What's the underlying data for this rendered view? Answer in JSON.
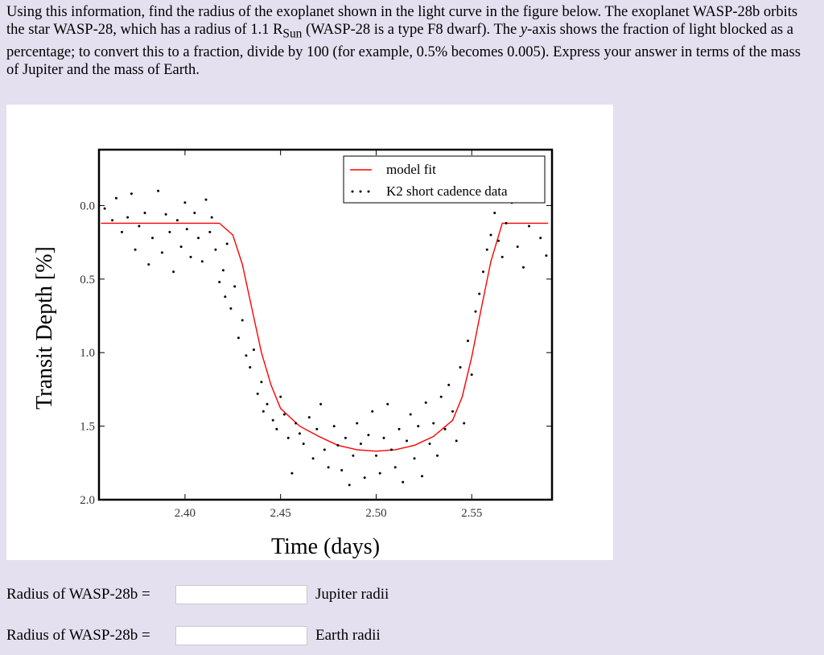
{
  "question": {
    "p1": "Using this information, find the radius of the exoplanet shown in the light curve in the figure below. The exoplanet WASP-28b orbits the star WASP-28, which has a radius of 1.1 R",
    "sub": "Sun",
    "p2": " (WASP-28 is a type F8 dwarf). The ",
    "yvar": "y",
    "p3": "-axis shows the fraction of light blocked as a percentage; to convert this to a fraction, divide by 100 (for example, 0.5% becomes 0.005). Express your answer in terms of the mass of Jupiter and the mass of Earth."
  },
  "answers": [
    {
      "label": "Radius of WASP-28b =",
      "value": "",
      "unit": "Jupiter radii"
    },
    {
      "label": "Radius of WASP-28b =",
      "value": "",
      "unit": "Earth radii"
    }
  ],
  "chart_data": {
    "type": "scatter",
    "xlabel": "Time (days)",
    "ylabel": "Transit Depth [%]",
    "xlim": [
      2.355,
      2.592
    ],
    "ylim": [
      2.0,
      -0.38
    ],
    "x_ticks": [
      "2.40",
      "2.45",
      "2.50",
      "2.55"
    ],
    "x_tick_values": [
      2.4,
      2.45,
      2.5,
      2.55
    ],
    "y_ticks": [
      "0.0",
      "0.5",
      "1.0",
      "1.5",
      "2.0"
    ],
    "y_tick_values": [
      0.0,
      0.5,
      1.0,
      1.5,
      2.0
    ],
    "legend_position": "top-right",
    "grid": false,
    "series": [
      {
        "name": "model fit",
        "kind": "line",
        "color": "#ff0000",
        "x": [
          2.356,
          2.4,
          2.418,
          2.425,
          2.43,
          2.435,
          2.44,
          2.445,
          2.45,
          2.46,
          2.47,
          2.48,
          2.49,
          2.5,
          2.51,
          2.52,
          2.53,
          2.54,
          2.545,
          2.55,
          2.555,
          2.56,
          2.566,
          2.59
        ],
        "y": [
          0.12,
          0.12,
          0.12,
          0.2,
          0.4,
          0.7,
          1.0,
          1.22,
          1.38,
          1.5,
          1.57,
          1.63,
          1.66,
          1.67,
          1.66,
          1.63,
          1.57,
          1.46,
          1.3,
          1.03,
          0.7,
          0.38,
          0.12,
          0.12
        ]
      },
      {
        "name": "K2 short cadence data",
        "kind": "scatter",
        "color": "#000000",
        "x": [
          2.358,
          2.362,
          2.364,
          2.367,
          2.37,
          2.372,
          2.374,
          2.376,
          2.379,
          2.381,
          2.383,
          2.386,
          2.388,
          2.39,
          2.392,
          2.394,
          2.396,
          2.398,
          2.4,
          2.401,
          2.403,
          2.405,
          2.407,
          2.409,
          2.411,
          2.413,
          2.414,
          2.416,
          2.418,
          2.42,
          2.421,
          2.422,
          2.424,
          2.426,
          2.428,
          2.43,
          2.432,
          2.434,
          2.436,
          2.438,
          2.44,
          2.441,
          2.443,
          2.446,
          2.448,
          2.45,
          2.452,
          2.454,
          2.456,
          2.458,
          2.46,
          2.462,
          2.465,
          2.467,
          2.469,
          2.471,
          2.473,
          2.475,
          2.478,
          2.48,
          2.482,
          2.484,
          2.486,
          2.488,
          2.49,
          2.492,
          2.494,
          2.496,
          2.498,
          2.5,
          2.502,
          2.504,
          2.506,
          2.508,
          2.51,
          2.512,
          2.514,
          2.516,
          2.518,
          2.52,
          2.522,
          2.524,
          2.526,
          2.528,
          2.53,
          2.532,
          2.534,
          2.536,
          2.538,
          2.54,
          2.542,
          2.544,
          2.546,
          2.548,
          2.55,
          2.552,
          2.554,
          2.556,
          2.558,
          2.56,
          2.562,
          2.564,
          2.566,
          2.568,
          2.571,
          2.574,
          2.577,
          2.58,
          2.583,
          2.586,
          2.589
        ],
        "y": [
          0.02,
          0.1,
          -0.05,
          0.18,
          0.08,
          -0.08,
          0.3,
          0.14,
          0.05,
          0.4,
          0.22,
          -0.1,
          0.32,
          0.06,
          0.18,
          0.45,
          0.1,
          0.28,
          -0.02,
          0.16,
          0.35,
          0.05,
          0.22,
          0.38,
          -0.04,
          0.18,
          0.08,
          0.3,
          0.52,
          0.44,
          0.62,
          0.26,
          0.7,
          0.55,
          0.9,
          0.78,
          1.02,
          1.1,
          0.98,
          1.28,
          1.2,
          1.4,
          1.35,
          1.46,
          1.52,
          1.3,
          1.42,
          1.58,
          1.82,
          1.48,
          1.55,
          1.62,
          1.44,
          1.72,
          1.52,
          1.35,
          1.66,
          1.78,
          1.5,
          1.63,
          1.8,
          1.58,
          1.9,
          1.7,
          1.48,
          1.62,
          1.85,
          1.56,
          1.4,
          1.7,
          1.82,
          1.58,
          1.35,
          1.66,
          1.78,
          1.52,
          1.88,
          1.6,
          1.42,
          1.72,
          1.5,
          1.84,
          1.34,
          1.62,
          1.48,
          1.7,
          1.3,
          1.52,
          1.22,
          1.4,
          1.6,
          1.1,
          1.48,
          0.92,
          1.15,
          0.72,
          0.6,
          0.45,
          0.3,
          0.2,
          0.05,
          0.24,
          0.35,
          0.12,
          -0.02,
          0.28,
          0.42,
          0.14,
          -0.05,
          0.22,
          0.34
        ]
      }
    ]
  }
}
